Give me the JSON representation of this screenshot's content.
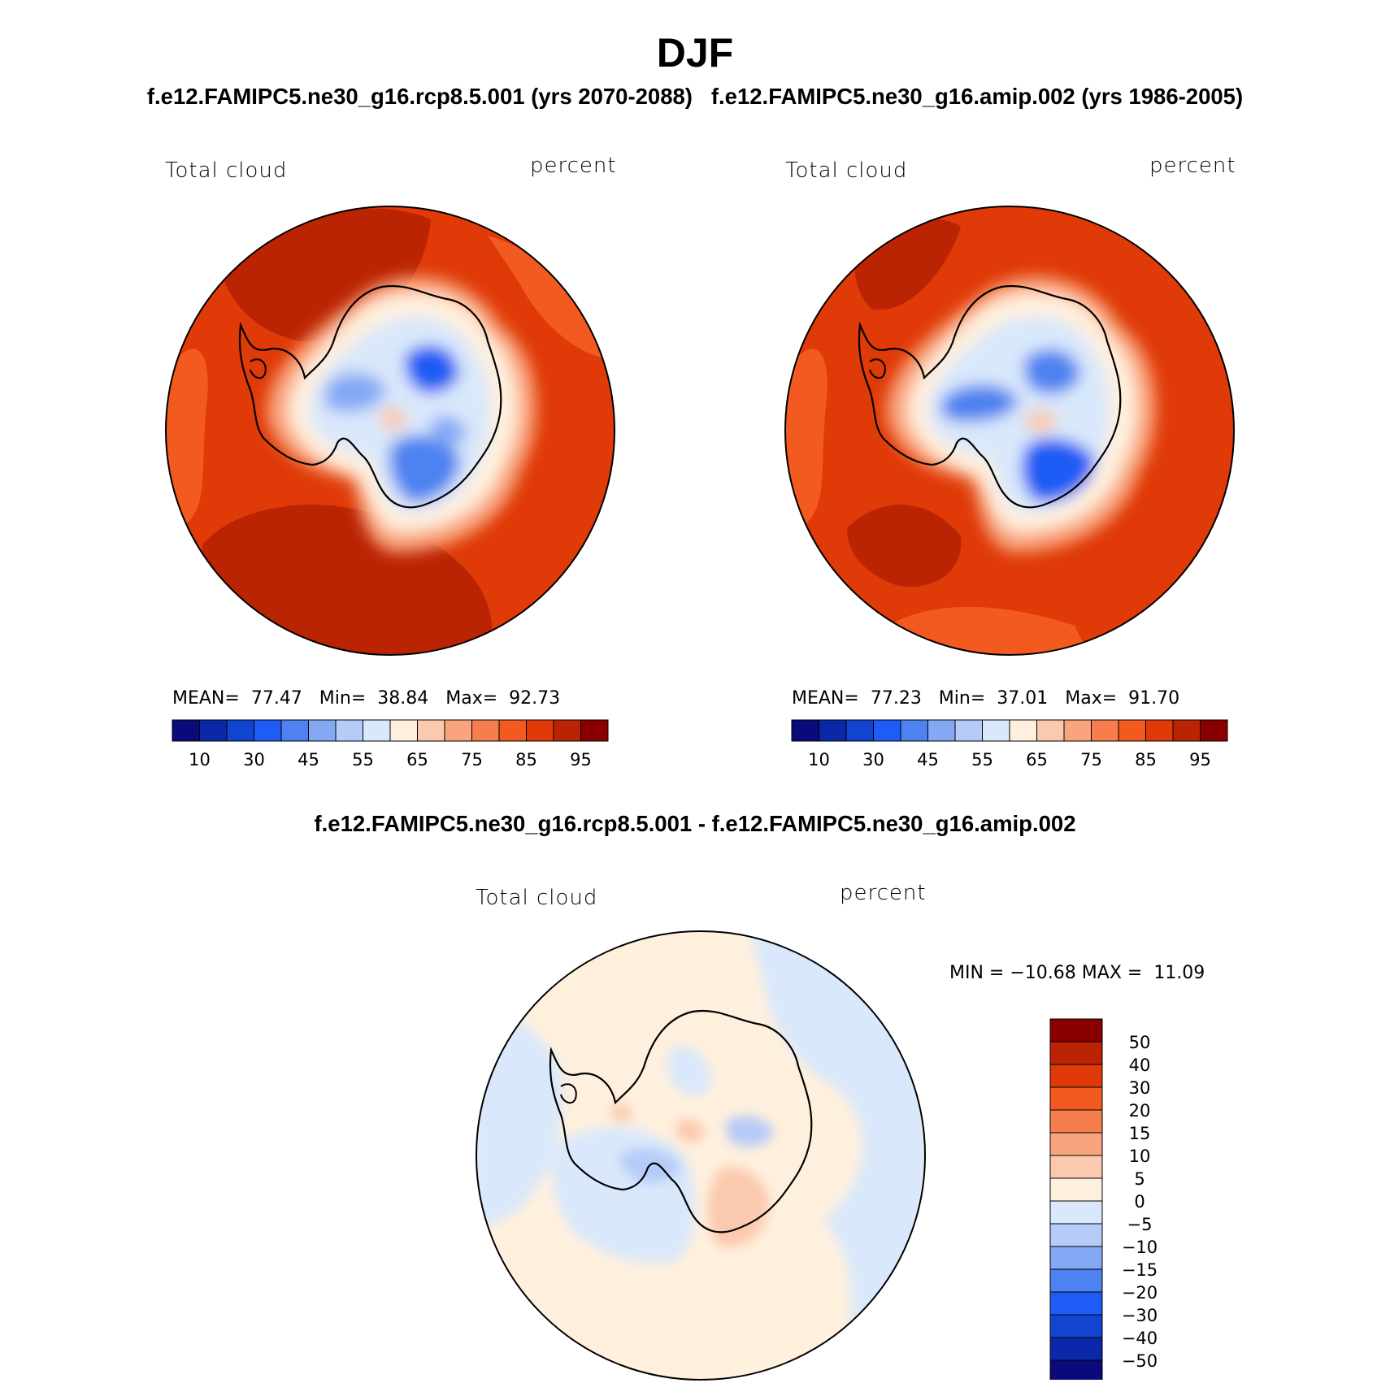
{
  "figure": {
    "season": "DJF",
    "case_titles": "f.e12.FAMIPC5.ne30_g16.rcp8.5.001 (yrs 2070-2088)   f.e12.FAMIPC5.ne30_g16.amip.002 (yrs 1986-2005)",
    "diff_title": "f.e12.FAMIPC5.ne30_g16.rcp8.5.001 - f.e12.FAMIPC5.ne30_g16.amip.002"
  },
  "panels": [
    {
      "variable": "Total cloud",
      "units": "percent",
      "mean_label": "MEAN=",
      "mean": "77.47",
      "min_label": "Min=",
      "min": "38.84",
      "max_label": "Max=",
      "max": "92.73"
    },
    {
      "variable": "Total cloud",
      "units": "percent",
      "mean_label": "MEAN=",
      "mean": "77.23",
      "min_label": "Min=",
      "min": "37.01",
      "max_label": "Max=",
      "max": "91.70"
    }
  ],
  "diff_panel": {
    "variable": "Total cloud",
    "units": "percent",
    "min_label": "MIN =",
    "min": "−10.68",
    "max_label": "MAX =",
    "max": "11.09"
  },
  "colorbar_main": {
    "colors": [
      "#0a0a7a",
      "#0b28a8",
      "#1244d2",
      "#1f5bf5",
      "#4d82f0",
      "#85a8f5",
      "#b5cbf8",
      "#d9e8fb",
      "#fff0dd",
      "#fbc9ad",
      "#f9a47d",
      "#f67d4d",
      "#f25a20",
      "#df3a07",
      "#bb2402",
      "#8a0000"
    ],
    "tick_labels": [
      "10",
      "30",
      "45",
      "55",
      "65",
      "75",
      "85",
      "95"
    ]
  },
  "colorbar_diff": {
    "colors_top_to_bottom": [
      "#8a0000",
      "#bb2402",
      "#df3a07",
      "#f25a20",
      "#f67d4d",
      "#f9a47d",
      "#fbc9ad",
      "#fff0dd",
      "#d9e8fb",
      "#b5cbf8",
      "#85a8f5",
      "#4d82f0",
      "#1f5bf5",
      "#1244d2",
      "#0b28a8",
      "#0a0a7a"
    ],
    "tick_labels": [
      "50",
      "40",
      "30",
      "20",
      "15",
      "10",
      "5",
      "0",
      "−5",
      "−10",
      "−15",
      "−20",
      "−30",
      "−40",
      "−50"
    ]
  },
  "colors": {
    "coastline": "#000000",
    "ocean_high": "#df3a07",
    "ocean_max": "#bb2402"
  }
}
